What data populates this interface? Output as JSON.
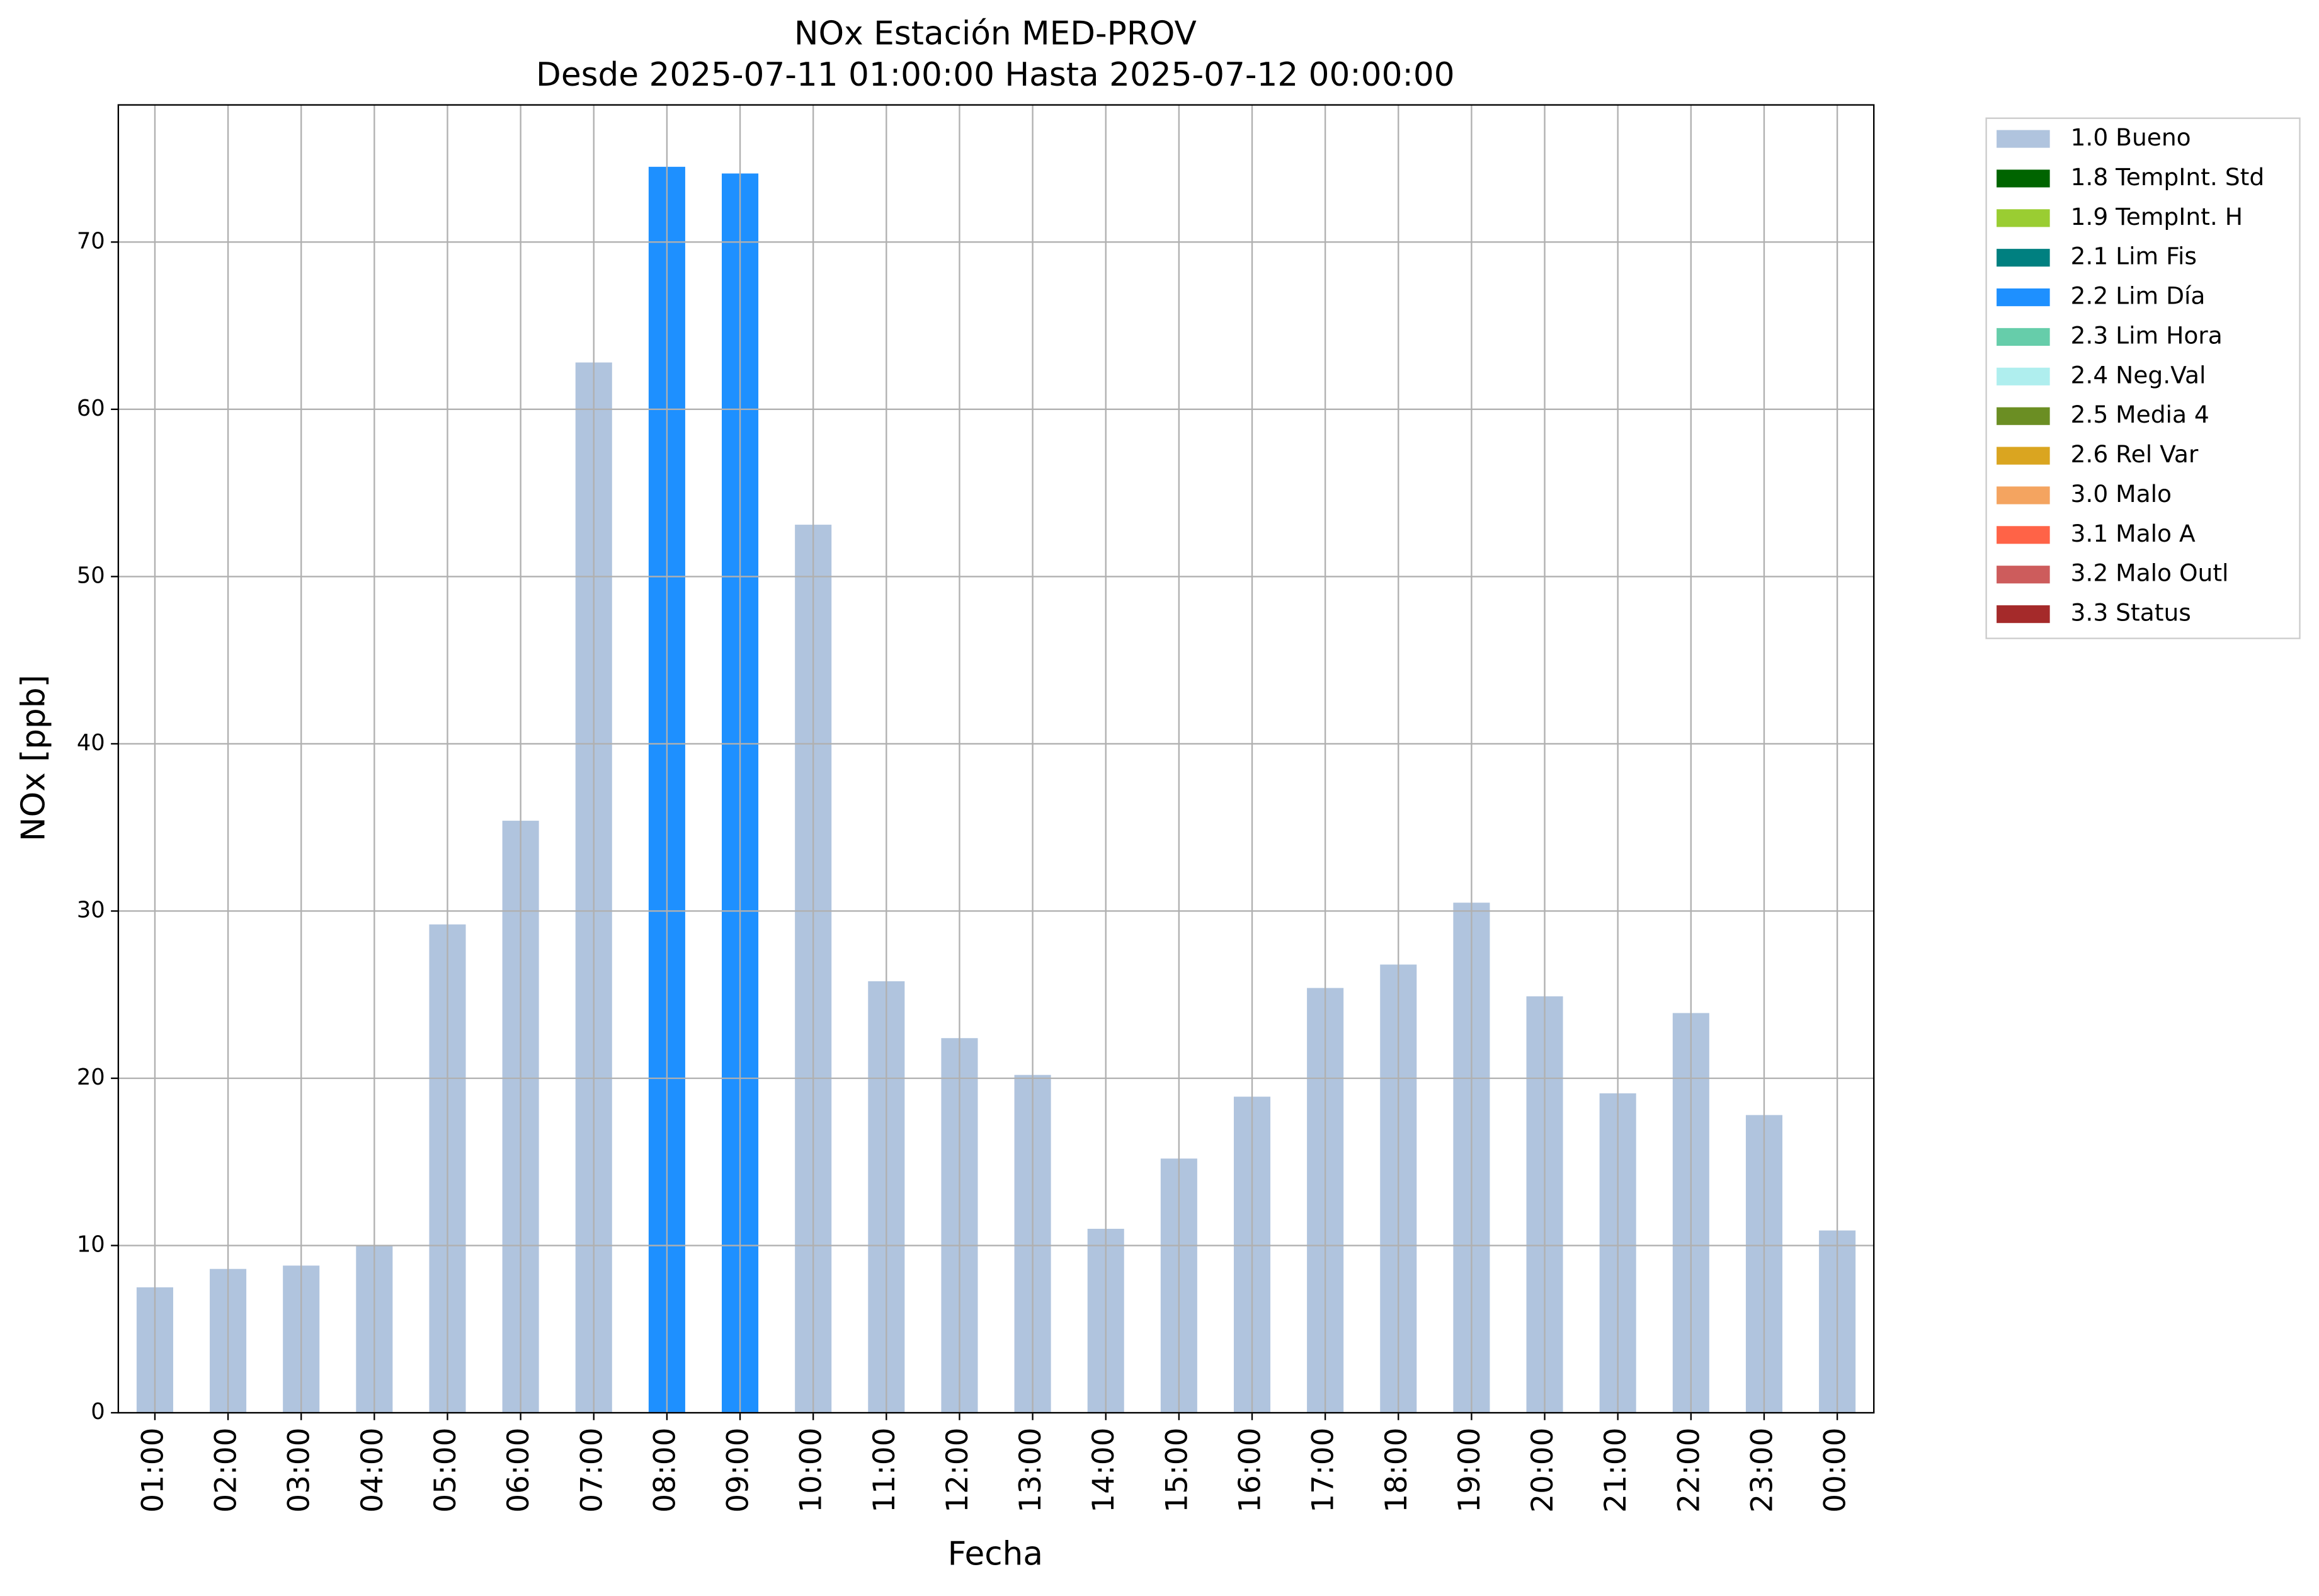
{
  "chart_data": {
    "type": "bar",
    "stacked": true,
    "title": "NOx Estación MED-PROV",
    "subtitle": "Desde 2025-07-11 01:00:00 Hasta 2025-07-12 00:00:00",
    "x_label": "Fecha",
    "y_label": "NOx [ppb]",
    "categories": [
      "01:00",
      "02:00",
      "03:00",
      "04:00",
      "05:00",
      "06:00",
      "07:00",
      "08:00",
      "09:00",
      "10:00",
      "11:00",
      "12:00",
      "13:00",
      "14:00",
      "15:00",
      "16:00",
      "17:00",
      "18:00",
      "19:00",
      "20:00",
      "21:00",
      "22:00",
      "23:00",
      "00:00"
    ],
    "series": [
      {
        "name": "1.0 Bueno",
        "color": "#b0c4de",
        "values": [
          7.5,
          8.6,
          8.8,
          10.0,
          29.2,
          35.4,
          62.8,
          null,
          null,
          53.1,
          25.8,
          22.4,
          20.2,
          11.0,
          15.2,
          18.9,
          25.4,
          26.8,
          30.5,
          24.9,
          19.1,
          23.9,
          17.8,
          10.9
        ]
      },
      {
        "name": "1.8 TempInt. Std",
        "color": "#006400",
        "values": [
          null,
          null,
          null,
          null,
          null,
          null,
          null,
          null,
          null,
          null,
          null,
          null,
          null,
          null,
          null,
          null,
          null,
          null,
          null,
          null,
          null,
          null,
          null,
          null
        ]
      },
      {
        "name": "1.9 TempInt. H",
        "color": "#9acd32",
        "values": [
          null,
          null,
          null,
          null,
          null,
          null,
          null,
          null,
          null,
          null,
          null,
          null,
          null,
          null,
          null,
          null,
          null,
          null,
          null,
          null,
          null,
          null,
          null,
          null
        ]
      },
      {
        "name": "2.1 Lim Fis",
        "color": "#008080",
        "values": [
          null,
          null,
          null,
          null,
          null,
          null,
          null,
          null,
          null,
          null,
          null,
          null,
          null,
          null,
          null,
          null,
          null,
          null,
          null,
          null,
          null,
          null,
          null,
          null
        ]
      },
      {
        "name": "2.2 Lim Día",
        "color": "#1e90ff",
        "values": [
          null,
          null,
          null,
          null,
          null,
          null,
          null,
          74.5,
          74.1,
          null,
          null,
          null,
          null,
          null,
          null,
          null,
          null,
          null,
          null,
          null,
          null,
          null,
          null,
          null
        ]
      },
      {
        "name": "2.3 Lim Hora",
        "color": "#66cdaa",
        "values": [
          null,
          null,
          null,
          null,
          null,
          null,
          null,
          null,
          null,
          null,
          null,
          null,
          null,
          null,
          null,
          null,
          null,
          null,
          null,
          null,
          null,
          null,
          null,
          null
        ]
      },
      {
        "name": "2.4 Neg.Val",
        "color": "#afeeee",
        "values": [
          null,
          null,
          null,
          null,
          null,
          null,
          null,
          null,
          null,
          null,
          null,
          null,
          null,
          null,
          null,
          null,
          null,
          null,
          null,
          null,
          null,
          null,
          null,
          null
        ]
      },
      {
        "name": "2.5 Media 4",
        "color": "#6b8e23",
        "values": [
          null,
          null,
          null,
          null,
          null,
          null,
          null,
          null,
          null,
          null,
          null,
          null,
          null,
          null,
          null,
          null,
          null,
          null,
          null,
          null,
          null,
          null,
          null,
          null
        ]
      },
      {
        "name": "2.6 Rel Var",
        "color": "#daa520",
        "values": [
          null,
          null,
          null,
          null,
          null,
          null,
          null,
          null,
          null,
          null,
          null,
          null,
          null,
          null,
          null,
          null,
          null,
          null,
          null,
          null,
          null,
          null,
          null,
          null
        ]
      },
      {
        "name": "3.0 Malo",
        "color": "#f4a460",
        "values": [
          null,
          null,
          null,
          null,
          null,
          null,
          null,
          null,
          null,
          null,
          null,
          null,
          null,
          null,
          null,
          null,
          null,
          null,
          null,
          null,
          null,
          null,
          null,
          null
        ]
      },
      {
        "name": "3.1 Malo A",
        "color": "#ff6347",
        "values": [
          null,
          null,
          null,
          null,
          null,
          null,
          null,
          null,
          null,
          null,
          null,
          null,
          null,
          null,
          null,
          null,
          null,
          null,
          null,
          null,
          null,
          null,
          null,
          null
        ]
      },
      {
        "name": "3.2 Malo Outl",
        "color": "#cd5c5c",
        "values": [
          null,
          null,
          null,
          null,
          null,
          null,
          null,
          null,
          null,
          null,
          null,
          null,
          null,
          null,
          null,
          null,
          null,
          null,
          null,
          null,
          null,
          null,
          null,
          null
        ]
      },
      {
        "name": "3.3 Status",
        "color": "#a52a2a",
        "values": [
          null,
          null,
          null,
          null,
          null,
          null,
          null,
          null,
          null,
          null,
          null,
          null,
          null,
          null,
          null,
          null,
          null,
          null,
          null,
          null,
          null,
          null,
          null,
          null
        ]
      }
    ],
    "ylim": [
      0,
      78.2
    ],
    "yticks": [
      0,
      10,
      20,
      30,
      40,
      50,
      60,
      70
    ],
    "grid": true,
    "legend": "outside-upper-right"
  }
}
